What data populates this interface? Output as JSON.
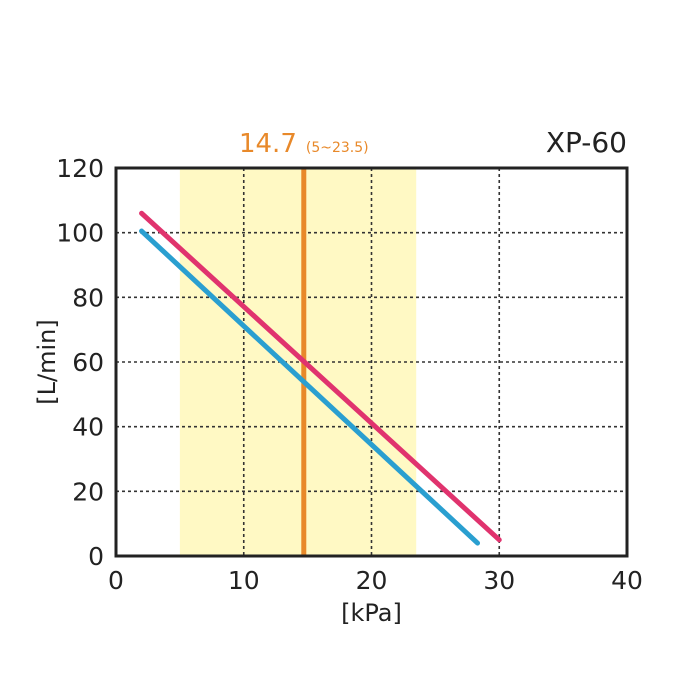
{
  "chart_data": {
    "type": "line",
    "title": "XP-60",
    "xlabel": "[kPa]",
    "ylabel": "[L/min]",
    "xlim": [
      0,
      40
    ],
    "ylim": [
      0,
      120
    ],
    "xticks": [
      0,
      10,
      20,
      30,
      40
    ],
    "yticks": [
      0,
      20,
      40,
      60,
      80,
      100,
      120
    ],
    "grid": true,
    "grid_style": "dotted",
    "series": [
      {
        "color": "#e0336e",
        "x": [
          2,
          30
        ],
        "y": [
          106,
          5
        ]
      },
      {
        "color": "#2a9fd0",
        "x": [
          2,
          28.3
        ],
        "y": [
          100.5,
          4
        ]
      }
    ],
    "highlight_band": {
      "x": [
        5,
        23.5
      ],
      "color": "#fff9c4"
    },
    "marker_line": {
      "x": 14.7,
      "color": "#e8892a"
    },
    "marker_label": {
      "value": "14.7",
      "range": "(5~23.5)"
    }
  }
}
